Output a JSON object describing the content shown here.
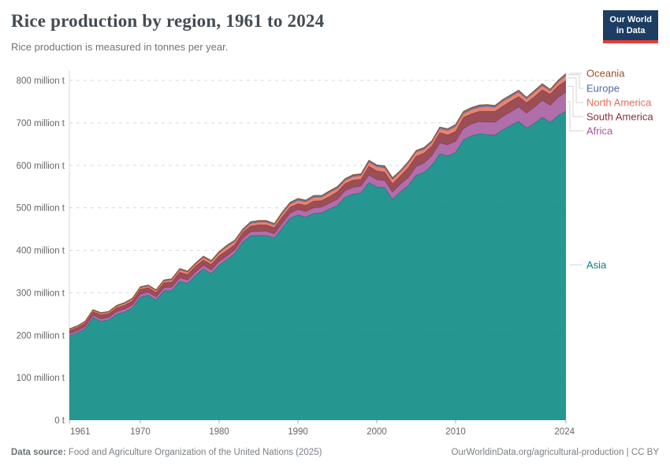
{
  "header": {
    "title": "Rice production by region, 1961 to 2024",
    "subtitle": "Rice production is measured in tonnes per year.",
    "logo_line1": "Our World",
    "logo_line2": "in Data"
  },
  "footer": {
    "datasource_label": "Data source:",
    "datasource_value": " Food and Agriculture Organization of the United Nations (2025)",
    "attribution": "OurWorldinData.org/agricultural-production | CC BY"
  },
  "colors": {
    "title": "#454c53",
    "subtitle": "#6e7479",
    "axis_text": "#666666",
    "gridline": "#d8d8d8",
    "tick": "#a8a8a8",
    "connector": "#d3d3d3",
    "logo_bg": "#1d3d63",
    "logo_red": "#e63e36",
    "footer_text": "#7a8086"
  },
  "chart_data": {
    "type": "area",
    "stacked": true,
    "grid": "dashed",
    "legend_position": "right",
    "title": "Rice production by region, 1961 to 2024",
    "subtitle": "Rice production is measured in tonnes per year.",
    "xlabel": "",
    "ylabel": "tonnes per year",
    "ylim": [
      0,
      850
    ],
    "xlim": [
      1961,
      2024
    ],
    "yticks": [
      0,
      100,
      200,
      300,
      400,
      500,
      600,
      700,
      800
    ],
    "ytick_labels": [
      "0 t",
      "100 million t",
      "200 million t",
      "300 million t",
      "400 million t",
      "500 million t",
      "600 million t",
      "700 million t",
      "800 million t"
    ],
    "xticks": [
      1961,
      1970,
      1980,
      1990,
      2000,
      2010,
      2024
    ],
    "x": [
      1961,
      1962,
      1963,
      1964,
      1965,
      1966,
      1967,
      1968,
      1969,
      1970,
      1971,
      1972,
      1973,
      1974,
      1975,
      1976,
      1977,
      1978,
      1979,
      1980,
      1981,
      1982,
      1983,
      1984,
      1985,
      1986,
      1987,
      1988,
      1989,
      1990,
      1991,
      1992,
      1993,
      1994,
      1995,
      1996,
      1997,
      1998,
      1999,
      2000,
      2001,
      2002,
      2003,
      2004,
      2005,
      2006,
      2007,
      2008,
      2009,
      2010,
      2011,
      2012,
      2013,
      2014,
      2015,
      2016,
      2017,
      2018,
      2019,
      2020,
      2021,
      2022,
      2023,
      2024
    ],
    "unit": "million tonnes",
    "series": [
      {
        "name": "Asia",
        "color": "#00847E",
        "values": [
          199.0,
          205.0,
          215.1,
          241.5,
          232.7,
          236.1,
          249.0,
          254.5,
          264.3,
          289.5,
          294.0,
          282.8,
          304.2,
          305.4,
          326.8,
          322.1,
          340.3,
          356.2,
          345.0,
          364.7,
          378.0,
          392.7,
          419.4,
          434.4,
          434.8,
          434.8,
          428.6,
          452.5,
          475.4,
          483.1,
          478.2,
          486.5,
          488.3,
          496.8,
          505.5,
          525.2,
          532.0,
          535.3,
          559.7,
          548.8,
          547.5,
          519.5,
          537.3,
          552.3,
          576.6,
          583.5,
          600.0,
          626.9,
          622.2,
          630.2,
          660.0,
          669.2,
          674.2,
          672.3,
          671.1,
          683.8,
          693.4,
          704.1,
          687.9,
          698.4,
          713.1,
          700.8,
          717.4,
          727.2
        ]
      },
      {
        "name": "Africa",
        "color": "#A2559C",
        "values": [
          4.9,
          5.2,
          5.6,
          5.7,
          5.9,
          6.1,
          6.5,
          6.8,
          7.0,
          7.3,
          7.6,
          7.5,
          7.6,
          8.0,
          8.4,
          8.2,
          8.5,
          8.6,
          8.7,
          8.8,
          8.9,
          8.7,
          8.9,
          9.2,
          9.8,
          10.3,
          10.2,
          11.0,
          12.0,
          12.6,
          13.2,
          13.5,
          13.6,
          14.0,
          14.6,
          15.4,
          16.0,
          15.9,
          17.0,
          17.4,
          16.9,
          17.5,
          18.4,
          19.0,
          20.6,
          21.9,
          23.0,
          26.0,
          25.8,
          26.5,
          26.7,
          28.0,
          28.8,
          29.5,
          30.5,
          31.5,
          32.5,
          33.5,
          35.0,
          38.5,
          39.5,
          40.5,
          42.5,
          45.5
        ]
      },
      {
        "name": "South America",
        "color": "#883039",
        "values": [
          6.8,
          7.3,
          7.5,
          7.8,
          9.2,
          8.4,
          8.8,
          9.2,
          9.4,
          11.1,
          10.2,
          10.4,
          11.5,
          11.8,
          13.2,
          12.5,
          13.6,
          12.0,
          13.0,
          13.5,
          13.1,
          12.0,
          13.6,
          13.3,
          15.2,
          14.7,
          14.2,
          14.8,
          14.0,
          13.8,
          14.5,
          15.8,
          15.0,
          15.9,
          17.6,
          16.5,
          17.2,
          16.0,
          21.3,
          20.8,
          19.8,
          19.9,
          19.5,
          23.2,
          24.0,
          23.2,
          22.3,
          24.1,
          23.7,
          23.1,
          26.1,
          24.0,
          24.2,
          25.2,
          25.4,
          24.0,
          25.3,
          24.5,
          24.5,
          24.7,
          25.2,
          26.3,
          26.5,
          26.8
        ]
      },
      {
        "name": "North America",
        "color": "#E56E5A",
        "values": [
          2.5,
          2.7,
          2.9,
          3.0,
          3.2,
          3.5,
          3.6,
          4.2,
          3.9,
          3.9,
          3.9,
          3.9,
          4.2,
          5.1,
          5.8,
          5.3,
          4.5,
          6.0,
          5.9,
          6.6,
          8.4,
          7.0,
          4.5,
          6.3,
          6.1,
          6.1,
          5.8,
          7.3,
          7.0,
          7.9,
          7.8,
          8.7,
          7.8,
          9.0,
          7.9,
          7.8,
          8.3,
          8.5,
          9.5,
          9.7,
          9.8,
          9.6,
          9.1,
          10.5,
          10.1,
          9.0,
          9.0,
          9.4,
          10.0,
          11.6,
          9.2,
          9.8,
          9.5,
          11.1,
          9.2,
          11.3,
          9.8,
          10.2,
          8.4,
          10.3,
          9.7,
          7.3,
          9.6,
          12.2
        ]
      },
      {
        "name": "Europe",
        "color": "#4C6A9C",
        "values": [
          1.6,
          1.6,
          1.7,
          1.8,
          1.8,
          1.7,
          1.9,
          2.0,
          2.1,
          1.9,
          2.0,
          2.1,
          2.2,
          2.3,
          2.4,
          2.5,
          2.6,
          2.7,
          2.8,
          2.8,
          2.9,
          3.0,
          3.1,
          3.2,
          3.3,
          3.4,
          3.5,
          3.6,
          3.7,
          3.7,
          3.5,
          3.4,
          3.3,
          3.2,
          3.2,
          3.1,
          3.1,
          2.9,
          3.1,
          3.2,
          3.2,
          3.2,
          3.3,
          3.4,
          3.4,
          3.4,
          3.5,
          3.5,
          4.2,
          4.4,
          4.3,
          4.1,
          4.1,
          4.1,
          4.1,
          4.1,
          4.2,
          4.1,
          4.1,
          4.0,
          4.1,
          3.4,
          3.6,
          3.7
        ]
      },
      {
        "name": "Oceania",
        "color": "#9A5129",
        "values": [
          0.2,
          0.2,
          0.2,
          0.2,
          0.2,
          0.2,
          0.2,
          0.3,
          0.3,
          0.3,
          0.3,
          0.3,
          0.3,
          0.4,
          0.4,
          0.4,
          0.5,
          0.5,
          0.6,
          0.6,
          0.7,
          0.6,
          0.5,
          0.6,
          0.8,
          0.7,
          0.7,
          0.8,
          0.9,
          0.9,
          0.8,
          1.1,
          1.0,
          1.1,
          1.2,
          1.0,
          1.4,
          1.4,
          1.4,
          1.1,
          1.8,
          1.3,
          0.4,
          0.6,
          0.3,
          1.0,
          0.2,
          0.1,
          0.1,
          0.2,
          0.7,
          0.9,
          1.2,
          0.8,
          0.7,
          0.3,
          0.8,
          0.6,
          0.1,
          0.1,
          0.4,
          0.7,
          0.4,
          0.6
        ]
      }
    ],
    "legend": [
      {
        "name": "Oceania",
        "color": "#9A5129",
        "label_y": 93,
        "elbow_x": 739
      },
      {
        "name": "Europe",
        "color": "#4C6A9C",
        "label_y": 112,
        "elbow_x": 735
      },
      {
        "name": "North America",
        "color": "#E56E5A",
        "label_y": 130,
        "elbow_x": 731
      },
      {
        "name": "South America",
        "color": "#883039",
        "label_y": 148,
        "elbow_x": 727
      },
      {
        "name": "Africa",
        "color": "#A2559C",
        "label_y": 166,
        "elbow_x": 723
      },
      {
        "name": "Asia",
        "color": "#00847E",
        "label_y": 336,
        "elbow_x": 723
      }
    ]
  }
}
